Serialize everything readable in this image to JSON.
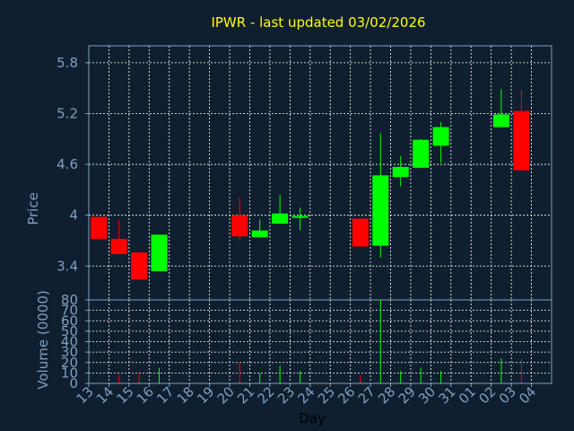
{
  "chart_data": [
    {
      "type": "candlestick",
      "title": "IPWR - last updated 03/02/2026",
      "ylabel": "Price",
      "ylim": [
        3.0,
        6.0
      ],
      "yticks": [
        "3.4",
        "4",
        "4.6",
        "5.2",
        "5.8"
      ],
      "grid": true,
      "categories": [
        "13",
        "14",
        "15",
        "16",
        "17",
        "18",
        "19",
        "20",
        "21",
        "22",
        "23",
        "24",
        "25",
        "26",
        "27",
        "28",
        "29",
        "30",
        "31",
        "01",
        "02",
        "03",
        "04"
      ],
      "candles": [
        {
          "day": "13",
          "open": 3.98,
          "close": 3.72,
          "high": 3.98,
          "low": 3.72
        },
        {
          "day": "14",
          "open": 3.72,
          "close": 3.54,
          "high": 3.94,
          "low": 3.54
        },
        {
          "day": "15",
          "open": 3.56,
          "close": 3.24,
          "high": 3.56,
          "low": 3.24
        },
        {
          "day": "16",
          "open": 3.34,
          "close": 3.77,
          "high": 3.77,
          "low": 3.34
        },
        {
          "day": "20",
          "open": 4.0,
          "close": 3.75,
          "high": 4.21,
          "low": 3.7
        },
        {
          "day": "21",
          "open": 3.74,
          "close": 3.82,
          "high": 3.95,
          "low": 3.74
        },
        {
          "day": "22",
          "open": 3.9,
          "close": 4.02,
          "high": 4.24,
          "low": 3.9
        },
        {
          "day": "23",
          "open": 3.98,
          "close": 3.99,
          "high": 4.09,
          "low": 3.82
        },
        {
          "day": "26",
          "open": 3.96,
          "close": 3.63,
          "high": 3.96,
          "low": 3.63
        },
        {
          "day": "27",
          "open": 3.64,
          "close": 4.47,
          "high": 4.97,
          "low": 3.5
        },
        {
          "day": "28",
          "open": 4.45,
          "close": 4.57,
          "high": 4.7,
          "low": 4.34
        },
        {
          "day": "29",
          "open": 4.56,
          "close": 4.89,
          "high": 4.9,
          "low": 4.56
        },
        {
          "day": "30",
          "open": 4.82,
          "close": 5.04,
          "high": 5.1,
          "low": 4.62
        },
        {
          "day": "02",
          "open": 5.04,
          "close": 5.19,
          "high": 5.49,
          "low": 5.04
        },
        {
          "day": "03",
          "open": 5.23,
          "close": 4.53,
          "high": 5.48,
          "low": 4.53
        }
      ]
    },
    {
      "type": "bar",
      "ylabel": "Volume (0000)",
      "xlabel": "Day",
      "ylim": [
        0,
        80
      ],
      "yticks": [
        "0",
        "10",
        "20",
        "30",
        "40",
        "50",
        "60",
        "70",
        "80"
      ],
      "grid": true,
      "categories": [
        "13",
        "14",
        "15",
        "16",
        "17",
        "18",
        "19",
        "20",
        "21",
        "22",
        "23",
        "24",
        "25",
        "26",
        "27",
        "28",
        "29",
        "30",
        "31",
        "01",
        "02",
        "03",
        "04"
      ],
      "bars": [
        {
          "day": "14",
          "value": 8,
          "color": "#ff0000"
        },
        {
          "day": "15",
          "value": 10,
          "color": "#ff0000"
        },
        {
          "day": "16",
          "value": 15,
          "color": "#00ff00"
        },
        {
          "day": "20",
          "value": 20,
          "color": "#ff0000"
        },
        {
          "day": "21",
          "value": 10,
          "color": "#00ff00"
        },
        {
          "day": "22",
          "value": 17,
          "color": "#00ff00"
        },
        {
          "day": "23",
          "value": 12,
          "color": "#00ff00"
        },
        {
          "day": "26",
          "value": 8,
          "color": "#ff0000"
        },
        {
          "day": "27",
          "value": 80,
          "color": "#00ff00"
        },
        {
          "day": "28",
          "value": 12,
          "color": "#00ff00"
        },
        {
          "day": "29",
          "value": 15,
          "color": "#00ff00"
        },
        {
          "day": "30",
          "value": 12,
          "color": "#00ff00"
        },
        {
          "day": "02",
          "value": 24,
          "color": "#00ff00"
        },
        {
          "day": "03",
          "value": 23,
          "color": "#ff0000"
        }
      ]
    }
  ],
  "colors": {
    "background": "#0f1f2f",
    "title": "#ffff00",
    "axis_text": "#7f9fbf",
    "axis_line": "#7f9fbf",
    "grid": "#ffffff",
    "up": "#00ff00",
    "down": "#ff0000"
  }
}
